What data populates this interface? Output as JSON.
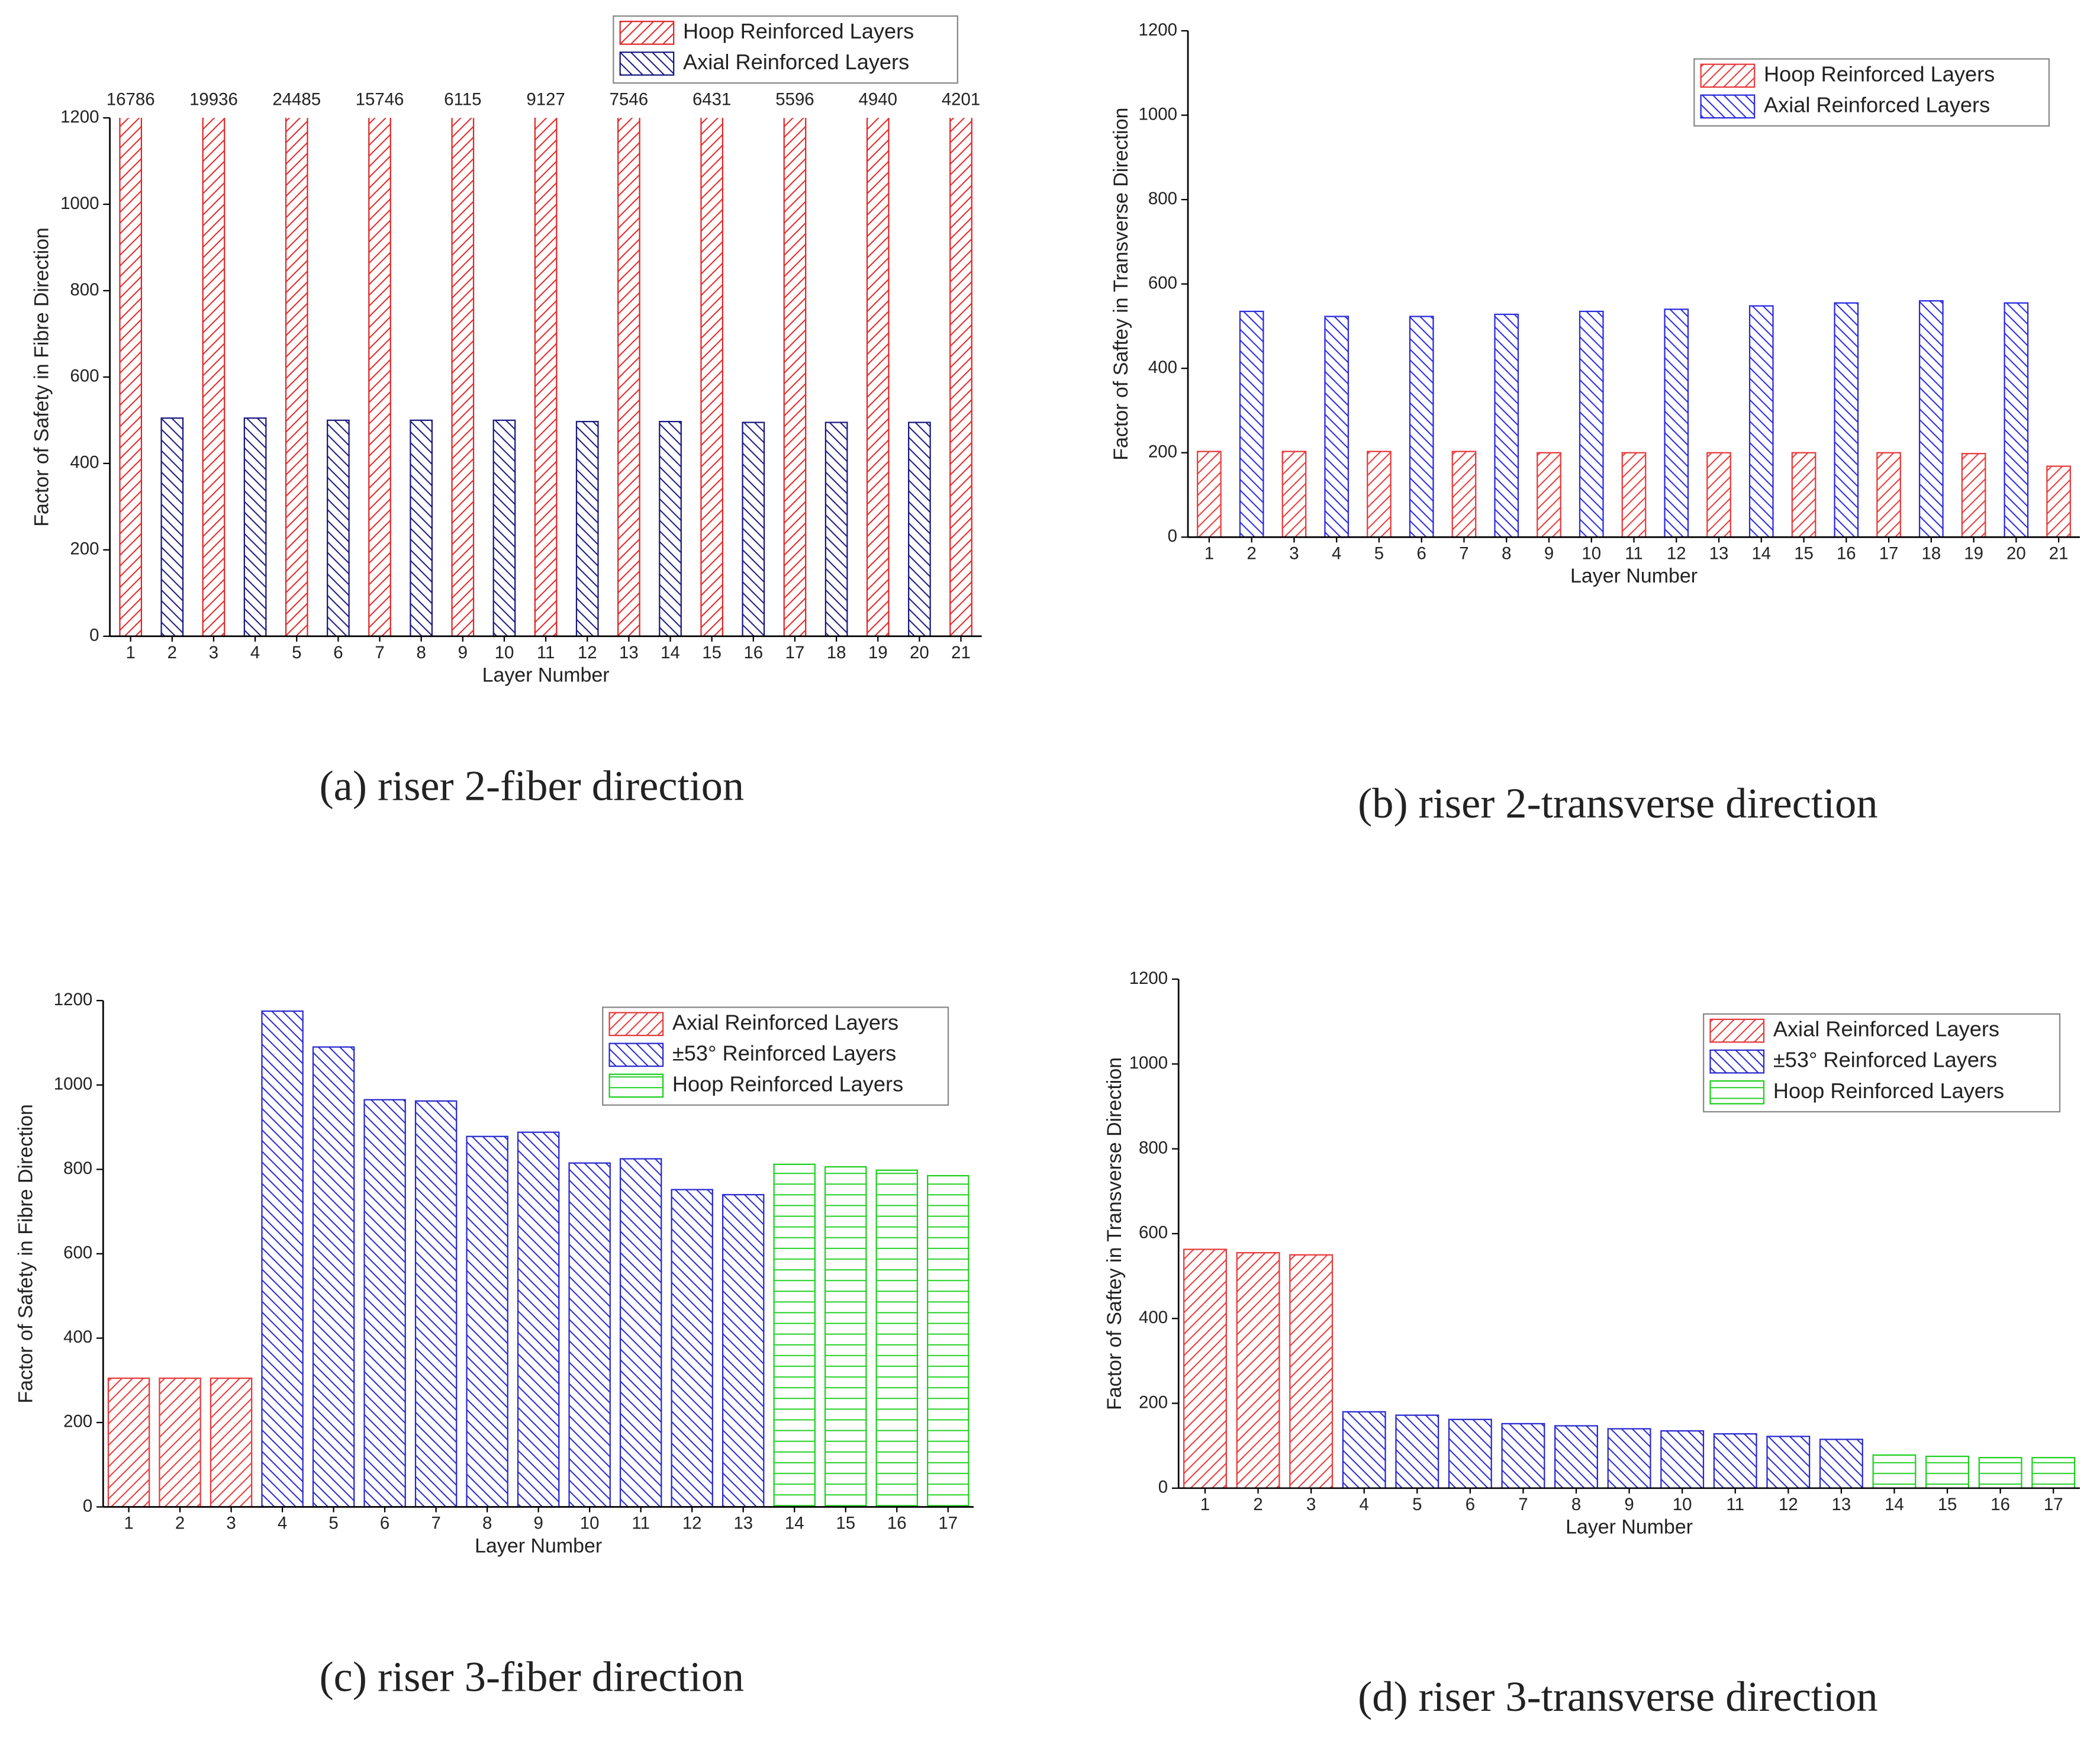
{
  "chart_data": [
    {
      "type": "bar",
      "caption": "(a) riser 2-fiber direction",
      "x_label": "Layer Number",
      "y_label": "Factor of Safety in Fibre Direction",
      "categories": [
        1,
        2,
        3,
        4,
        5,
        6,
        7,
        8,
        9,
        10,
        11,
        12,
        13,
        14,
        15,
        16,
        17,
        18,
        19,
        20,
        21
      ],
      "series": [
        {
          "name": "Hoop Reinforced Layers",
          "color": "#e02828",
          "pattern": "diag-right",
          "data_labels": true,
          "values": [
            16786,
            null,
            19936,
            null,
            24485,
            null,
            15746,
            null,
            6115,
            null,
            9127,
            null,
            7546,
            null,
            6431,
            null,
            5596,
            null,
            4940,
            null,
            4201
          ]
        },
        {
          "name": "Axial Reinforced Layers",
          "color": "#1a1a80",
          "pattern": "diag-left",
          "values": [
            null,
            505,
            null,
            505,
            null,
            500,
            null,
            500,
            null,
            500,
            null,
            497,
            null,
            497,
            null,
            495,
            null,
            495,
            null,
            495,
            null
          ]
        }
      ],
      "ylim": [
        0,
        1200
      ],
      "yticks": [
        0,
        200,
        400,
        600,
        800,
        1000,
        1200
      ]
    },
    {
      "type": "bar",
      "caption": "(b) riser 2-transverse direction",
      "x_label": "Layer Number",
      "y_label": "Factor of Saftey in Transverse Direction",
      "categories": [
        1,
        2,
        3,
        4,
        5,
        6,
        7,
        8,
        9,
        10,
        11,
        12,
        13,
        14,
        15,
        16,
        17,
        18,
        19,
        20,
        21
      ],
      "series": [
        {
          "name": "Hoop Reinforced Layers",
          "color": "#e83a3a",
          "pattern": "diag-right",
          "values": [
            203,
            null,
            203,
            null,
            203,
            null,
            203,
            null,
            200,
            null,
            200,
            null,
            200,
            null,
            200,
            null,
            200,
            null,
            198,
            null,
            168
          ]
        },
        {
          "name": "Axial Reinforced Layers",
          "color": "#2a2ae0",
          "pattern": "diag-left",
          "values": [
            null,
            535,
            null,
            523,
            null,
            523,
            null,
            528,
            null,
            535,
            null,
            540,
            null,
            548,
            null,
            555,
            null,
            560,
            null,
            555,
            null
          ]
        }
      ],
      "ylim": [
        0,
        1200
      ],
      "yticks": [
        0,
        200,
        400,
        600,
        800,
        1000,
        1200
      ]
    },
    {
      "type": "bar",
      "caption": "(c) riser 3-fiber direction",
      "x_label": "Layer Number",
      "y_label": "Factor of Safety in Fibre Direction",
      "categories": [
        1,
        2,
        3,
        4,
        5,
        6,
        7,
        8,
        9,
        10,
        11,
        12,
        13,
        14,
        15,
        16,
        17
      ],
      "series": [
        {
          "name": "Axial Reinforced Layers",
          "color": "#e83a3a",
          "pattern": "diag-right",
          "values": [
            305,
            305,
            305,
            null,
            null,
            null,
            null,
            null,
            null,
            null,
            null,
            null,
            null,
            null,
            null,
            null,
            null
          ]
        },
        {
          "name": "±53° Reinforced Layers",
          "color": "#2a2ad0",
          "pattern": "diag-left",
          "values": [
            null,
            null,
            null,
            1175,
            1090,
            965,
            962,
            878,
            888,
            815,
            825,
            752,
            740,
            null,
            null,
            null,
            null
          ]
        },
        {
          "name": "Hoop Reinforced Layers",
          "color": "#1ed01e",
          "pattern": "horizontal",
          "values": [
            null,
            null,
            null,
            null,
            null,
            null,
            null,
            null,
            null,
            null,
            null,
            null,
            null,
            812,
            806,
            798,
            785
          ]
        }
      ],
      "ylim": [
        0,
        1200
      ],
      "yticks": [
        0,
        200,
        400,
        600,
        800,
        1000,
        1200
      ]
    },
    {
      "type": "bar",
      "caption": "(d) riser 3-transverse direction",
      "x_label": "Layer Number",
      "y_label": "Factor of Saftey in Transverse Direction",
      "categories": [
        1,
        2,
        3,
        4,
        5,
        6,
        7,
        8,
        9,
        10,
        11,
        12,
        13,
        14,
        15,
        16,
        17
      ],
      "series": [
        {
          "name": "Axial Reinforced Layers",
          "color": "#e83a3a",
          "pattern": "diag-right",
          "values": [
            563,
            555,
            550,
            null,
            null,
            null,
            null,
            null,
            null,
            null,
            null,
            null,
            null,
            null,
            null,
            null,
            null
          ]
        },
        {
          "name": "±53° Reinforced Layers",
          "color": "#2a2ad0",
          "pattern": "diag-left",
          "values": [
            null,
            null,
            null,
            180,
            172,
            162,
            152,
            147,
            140,
            135,
            128,
            122,
            115,
            null,
            null,
            null,
            null
          ]
        },
        {
          "name": "Hoop Reinforced Layers",
          "color": "#1ed01e",
          "pattern": "horizontal",
          "values": [
            null,
            null,
            null,
            null,
            null,
            null,
            null,
            null,
            null,
            null,
            null,
            null,
            null,
            78,
            75,
            72,
            72
          ]
        }
      ],
      "ylim": [
        0,
        1200
      ],
      "yticks": [
        0,
        200,
        400,
        600,
        800,
        1000,
        1200
      ]
    }
  ]
}
